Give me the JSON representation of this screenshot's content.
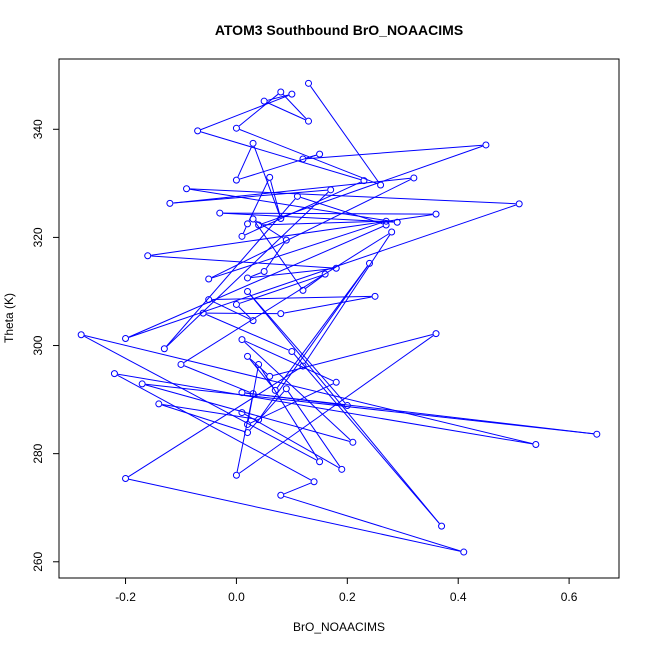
{
  "chart_data": {
    "type": "line",
    "title": "ATOM3 Southbound BrO_NOAACIMS",
    "xlabel": "BrO_NOAACIMS",
    "ylabel": "Theta (K)",
    "xlim": [
      -0.32,
      0.69
    ],
    "ylim": [
      257,
      353
    ],
    "xticks": [
      -0.2,
      0.0,
      0.2,
      0.4,
      0.6
    ],
    "xtick_labels": [
      "-0.2",
      "0.0",
      "0.2",
      "0.4",
      "0.6"
    ],
    "yticks": [
      260,
      280,
      300,
      320,
      340
    ],
    "ytick_labels": [
      "260",
      "280",
      "300",
      "320",
      "340"
    ],
    "grid": false,
    "series_color": "#0000ff",
    "marker": "open-circle",
    "series": [
      {
        "x": [
          0.13,
          0.26,
          0.0,
          0.08,
          0.13,
          0.05,
          0.1,
          -0.07,
          0.23,
          0.01,
          0.02,
          0.06,
          0.08,
          0.03,
          0.0,
          0.15,
          0.12,
          0.45,
          0.04,
          0.27,
          -0.05,
          0.32,
          -0.12,
          0.17,
          -0.13,
          0.11,
          0.27,
          -0.2,
          0.51,
          -0.09,
          0.29,
          -0.03,
          0.36,
          -0.16,
          0.18,
          0.02,
          0.05,
          0.09,
          0.03,
          0.12,
          0.16,
          0.0,
          0.03,
          -0.05,
          0.25,
          0.08,
          -0.06,
          0.1,
          0.37,
          0.02,
          0.2,
          0.01,
          0.65,
          -0.17,
          0.21,
          0.01,
          0.18,
          0.02,
          0.04,
          0.15,
          -0.28,
          0.54,
          -0.22,
          0.14,
          0.08,
          0.41,
          -0.2,
          0.12,
          0.28,
          -0.1,
          0.03,
          0.0,
          0.36,
          0.06,
          0.02,
          0.07,
          0.24,
          0.04,
          -0.14,
          0.02,
          0.09,
          0.19,
          0.01
        ],
        "y": [
          348.5,
          329.7,
          340.2,
          346.9,
          341.5,
          345.2,
          346.5,
          339.7,
          330.5,
          320.2,
          322.5,
          331.1,
          323.5,
          337.4,
          330.6,
          335.4,
          334.5,
          337.1,
          322.3,
          323.0,
          312.3,
          331.0,
          326.3,
          328.8,
          299.4,
          327.6,
          322.3,
          301.3,
          326.2,
          329.0,
          322.8,
          324.5,
          324.3,
          316.6,
          314.3,
          312.5,
          313.7,
          319.5,
          323.4,
          310.2,
          313.2,
          307.6,
          304.6,
          308.5,
          309.1,
          305.9,
          306.0,
          298.9,
          266.6,
          310.0,
          288.9,
          291.3,
          283.6,
          292.9,
          282.1,
          301.1,
          293.2,
          285.4,
          296.5,
          278.5,
          302.0,
          281.7,
          294.8,
          274.8,
          272.3,
          261.8,
          275.4,
          296.2,
          321.0,
          296.5,
          291.1,
          276.0,
          302.2,
          294.3,
          298.0,
          291.7,
          315.2,
          286.3,
          289.2,
          283.9,
          292.0,
          277.1,
          287.6
        ]
      }
    ]
  }
}
